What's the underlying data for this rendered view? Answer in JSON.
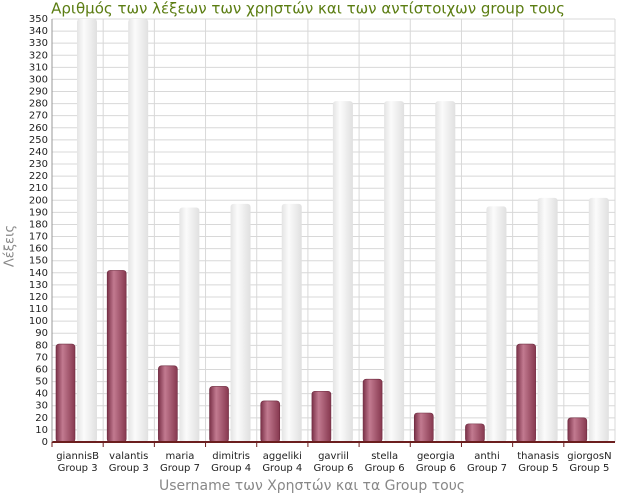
{
  "chart_data": {
    "type": "bar",
    "title": "Αριθμός των λέξεων των χρηστών και των αντίστοιχων group τους",
    "x_label": "Username των Χρηστών και τα Group τους",
    "y_label": "Λέξεις",
    "categories": [
      [
        "giannisB",
        "Group 3"
      ],
      [
        "valantis",
        "Group 3"
      ],
      [
        "maria",
        "Group 7"
      ],
      [
        "dimitris",
        "Group 4"
      ],
      [
        "aggeliki",
        "Group 4"
      ],
      [
        "gavriil",
        "Group 6"
      ],
      [
        "stella",
        "Group 6"
      ],
      [
        "georgia",
        "Group 6"
      ],
      [
        "anthi",
        "Group 7"
      ],
      [
        "thanasis",
        "Group 5"
      ],
      [
        "giorgosN",
        "Group 5"
      ]
    ],
    "series": [
      {
        "color": "#a3566e",
        "values": [
          81,
          142,
          63,
          46,
          34,
          42,
          52,
          24,
          15,
          81,
          20
        ]
      },
      {
        "color": "#f0f0f0",
        "values": [
          350,
          350,
          194,
          197,
          197,
          282,
          282,
          282,
          195,
          202,
          202
        ]
      }
    ],
    "ylim": [
      0,
      350
    ],
    "yticks": [
      0,
      10,
      20,
      30,
      40,
      50,
      60,
      70,
      80,
      90,
      100,
      110,
      120,
      130,
      140,
      150,
      160,
      170,
      180,
      190,
      200,
      210,
      220,
      230,
      240,
      250,
      260,
      270,
      280,
      290,
      300,
      310,
      320,
      330,
      340,
      350
    ],
    "grid": true
  }
}
